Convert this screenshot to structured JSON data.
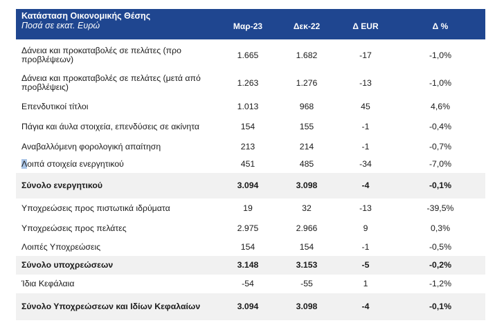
{
  "header": {
    "title": "Κατάσταση Οικονομικής Θέσης",
    "subtitle": "Ποσά σε εκατ. Ευρώ",
    "columns": [
      "Μαρ-23",
      "Δεκ-22",
      "Δ EUR",
      "Δ %"
    ],
    "background_color": "#1f4690"
  },
  "rows": [
    {
      "label": "Δάνεια και προκαταβολές σε πελάτες (προ προβλέψεων)",
      "mar23": "1.665",
      "dec22": "1.682",
      "d_eur": "-17",
      "d_pct": "-1,0%",
      "total": false
    },
    {
      "label": "Δάνεια και προκαταβολές σε πελάτες (μετά από προβλέψεις)",
      "mar23": "1.263",
      "dec22": "1.276",
      "d_eur": "-13",
      "d_pct": "-1,0%",
      "total": false
    },
    {
      "label": "Επενδυτικοί τίτλοι",
      "mar23": "1.013",
      "dec22": "968",
      "d_eur": "45",
      "d_pct": "4,6%",
      "total": false
    },
    {
      "label": "Πάγια και άυλα στοιχεία, επενδύσεις σε ακίνητα",
      "mar23": "154",
      "dec22": "155",
      "d_eur": "-1",
      "d_pct": "-0,4%",
      "total": false
    },
    {
      "label": "Αναβαλλόμενη φορολογική απαίτηση",
      "mar23": "213",
      "dec22": "214",
      "d_eur": "-1",
      "d_pct": "-0,7%",
      "total": false
    },
    {
      "label_first": "Λ",
      "label_rest": "οιπά στοιχεία ενεργητικού",
      "mar23": "451",
      "dec22": "485",
      "d_eur": "-34",
      "d_pct": "-7,0%",
      "total": false
    },
    {
      "label": "Σύνολο ενεργητικού",
      "mar23": "3.094",
      "dec22": "3.098",
      "d_eur": "-4",
      "d_pct": "-0,1%",
      "total": true
    },
    {
      "label": "Υποχρεώσεις προς πιστωτικά ιδρύματα",
      "mar23": "19",
      "dec22": "32",
      "d_eur": "-13",
      "d_pct": "-39,5%",
      "total": false
    },
    {
      "label": "Υποχρεώσεις προς πελάτες",
      "mar23": "2.975",
      "dec22": "2.966",
      "d_eur": "9",
      "d_pct": "0,3%",
      "total": false
    },
    {
      "label": "Λοιπές Υποχρεώσεις",
      "mar23": "154",
      "dec22": "154",
      "d_eur": "-1",
      "d_pct": "-0,5%",
      "total": false
    },
    {
      "label": "Σύνολο υποχρεώσεων",
      "mar23": "3.148",
      "dec22": "3.153",
      "d_eur": "-5",
      "d_pct": "-0,2%",
      "total": true
    },
    {
      "label": "Ίδια Κεφάλαια",
      "mar23": "-54",
      "dec22": "-55",
      "d_eur": "1",
      "d_pct": "-1,2%",
      "total": false
    },
    {
      "label": "Σύνολο Υποχρεώσεων και Ιδίων Κεφαλαίων",
      "mar23": "3.094",
      "dec22": "3.098",
      "d_eur": "-4",
      "d_pct": "-0,1%",
      "total": true
    }
  ]
}
